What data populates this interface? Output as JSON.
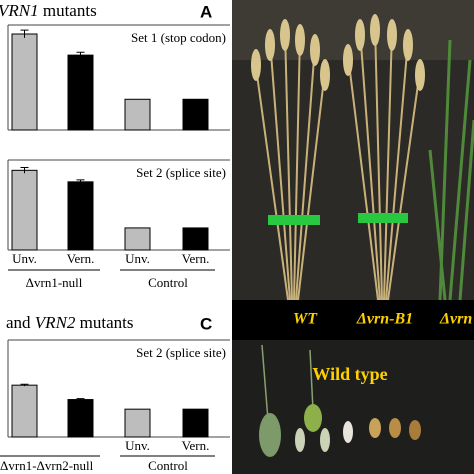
{
  "panel_a": {
    "title_gene": "VRN1",
    "title_rest": " mutants",
    "letter": "A",
    "sets": [
      {
        "label": "Set 1 (stop codon)",
        "values": [
          1.0,
          0.78,
          0.32,
          0.32
        ],
        "errors": [
          0.04,
          0.03,
          0,
          0
        ]
      },
      {
        "label": "Set 2 (splice site)",
        "values": [
          0.83,
          0.71,
          0.23,
          0.23
        ],
        "errors": [
          0.03,
          0.02,
          0,
          0
        ]
      }
    ],
    "bar_labels": [
      "Unv.",
      "Vern.",
      "Unv.",
      "Vern."
    ],
    "groups": [
      "Δvrn1-null",
      "Control"
    ]
  },
  "panel_c": {
    "title_prefix": "and ",
    "title_gene": "VRN2",
    "title_rest": " mutants",
    "letter": "C",
    "sets": [
      {
        "label": "Set 2 (splice site)",
        "values": [
          0.54,
          0.39,
          0.29,
          0.29
        ],
        "errors": [
          0.01,
          0.01,
          0,
          0
        ]
      }
    ],
    "bar_labels": [
      "Unv.",
      "Vern."
    ],
    "groups": [
      "Δvrn1-Δvrn2-null",
      "Control"
    ]
  },
  "photo": {
    "labels": [
      "WT",
      "Δvrn-B1",
      "Δvrn"
    ],
    "caption": "Wild type"
  }
}
